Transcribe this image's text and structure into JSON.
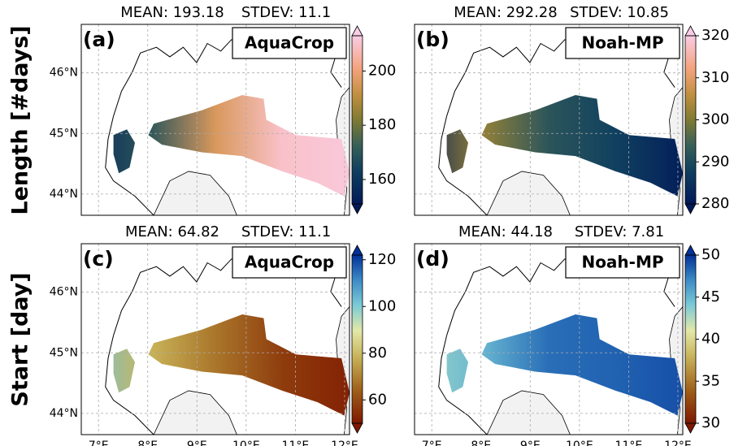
{
  "row_labels": [
    "Length [#days]",
    "Start [day]"
  ],
  "lat_ticks": [
    {
      "value": 44,
      "label": "44°N"
    },
    {
      "value": 45,
      "label": "45°N"
    },
    {
      "value": 46,
      "label": "46°N"
    }
  ],
  "lon_ticks": [
    {
      "value": 7,
      "label": "7°E"
    },
    {
      "value": 8,
      "label": "8°E"
    },
    {
      "value": 9,
      "label": "9°E"
    },
    {
      "value": 10,
      "label": "10°E"
    },
    {
      "value": 11,
      "label": "11°E"
    },
    {
      "value": 12,
      "label": "12°E"
    }
  ],
  "lon_lim": [
    6.65,
    12.1
  ],
  "lat_lim": [
    43.65,
    46.8
  ],
  "panels": [
    {
      "label": "(a)",
      "model": "AquaCrop",
      "mean": "MEAN: 193.18",
      "stdev": "STDEV: 11.1",
      "colorbar": {
        "lim": [
          151,
          213
        ],
        "ticks": [
          160,
          180,
          200
        ]
      }
    },
    {
      "label": "(b)",
      "model": "Noah-MP",
      "mean": "MEAN: 292.28",
      "stdev": "STDEV: 10.85",
      "colorbar": {
        "lim": [
          280,
          320
        ],
        "ticks": [
          280,
          290,
          300,
          310,
          320
        ]
      }
    },
    {
      "label": "(c)",
      "model": "AquaCrop",
      "mean": "MEAN: 64.82",
      "stdev": "STDEV: 11.1",
      "colorbar": {
        "lim": [
          50,
          122
        ],
        "ticks": [
          60,
          80,
          100,
          120
        ]
      }
    },
    {
      "label": "(d)",
      "model": "Noah-MP",
      "mean": "MEAN: 44.18",
      "stdev": "STDEV: 7.81",
      "colorbar": {
        "lim": [
          30,
          50
        ],
        "ticks": [
          30,
          35,
          40,
          45,
          50
        ]
      }
    }
  ]
}
